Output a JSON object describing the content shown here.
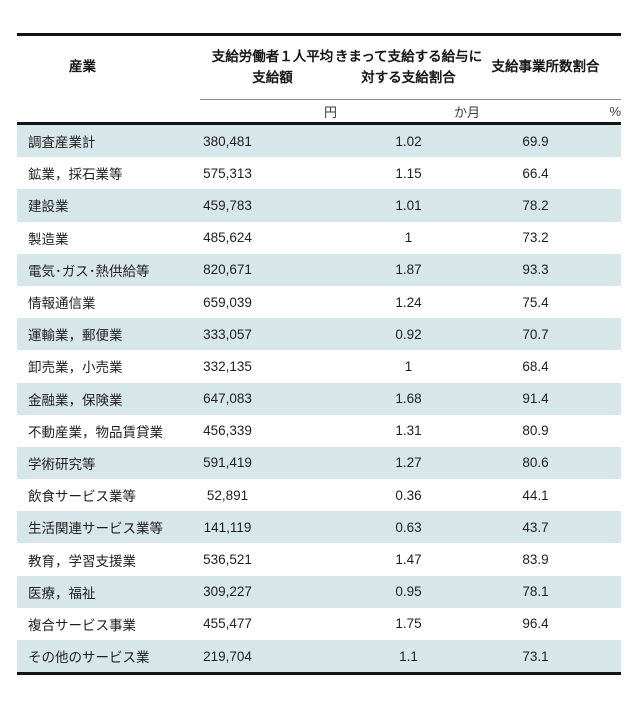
{
  "table": {
    "headers": {
      "industry": "産業",
      "avg_payment_line1": "支給労働者１人平均",
      "avg_payment_line2": "支給額",
      "ratio_line1": "きまって支給する給与に",
      "ratio_line2": "対する支給割合",
      "establishments": "支給事業所数割合"
    },
    "units": {
      "yen": "円",
      "months": "か月",
      "percent": "%"
    }
  },
  "chart_data": {
    "type": "table",
    "columns": [
      "産業",
      "支給労働者１人平均支給額（円）",
      "きまって支給する給与に対する支給割合（か月）",
      "支給事業所数割合（%）"
    ],
    "rows": [
      {
        "industry": "調査産業計",
        "amount": "380,481",
        "months": "1.02",
        "percent": "69.9"
      },
      {
        "industry": "鉱業，採石業等",
        "amount": "575,313",
        "months": "1.15",
        "percent": "66.4"
      },
      {
        "industry": "建設業",
        "amount": "459,783",
        "months": "1.01",
        "percent": "78.2"
      },
      {
        "industry": "製造業",
        "amount": "485,624",
        "months": "1",
        "percent": "73.2"
      },
      {
        "industry": "電気･ガス･熱供給等",
        "amount": "820,671",
        "months": "1.87",
        "percent": "93.3"
      },
      {
        "industry": "情報通信業",
        "amount": "659,039",
        "months": "1.24",
        "percent": "75.4"
      },
      {
        "industry": "運輸業，郵便業",
        "amount": "333,057",
        "months": "0.92",
        "percent": "70.7"
      },
      {
        "industry": "卸売業，小売業",
        "amount": "332,135",
        "months": "1",
        "percent": "68.4"
      },
      {
        "industry": "金融業，保険業",
        "amount": "647,083",
        "months": "1.68",
        "percent": "91.4"
      },
      {
        "industry": "不動産業，物品賃貸業",
        "amount": "456,339",
        "months": "1.31",
        "percent": "80.9"
      },
      {
        "industry": "学術研究等",
        "amount": "591,419",
        "months": "1.27",
        "percent": "80.6"
      },
      {
        "industry": "飲食サービス業等",
        "amount": "52,891",
        "months": "0.36",
        "percent": "44.1"
      },
      {
        "industry": "生活関連サービス業等",
        "amount": "141,119",
        "months": "0.63",
        "percent": "43.7"
      },
      {
        "industry": "教育，学習支援業",
        "amount": "536,521",
        "months": "1.47",
        "percent": "83.9"
      },
      {
        "industry": "医療，福祉",
        "amount": "309,227",
        "months": "0.95",
        "percent": "78.1"
      },
      {
        "industry": "複合サービス事業",
        "amount": "455,477",
        "months": "1.75",
        "percent": "96.4"
      },
      {
        "industry": "その他のサービス業",
        "amount": "219,704",
        "months": "1.1",
        "percent": "73.1"
      }
    ]
  },
  "colors": {
    "stripe": "#d7e6e8",
    "rule_dark": "#141414",
    "rule_light": "#8f8f8f",
    "text": "#1e1e1e"
  }
}
